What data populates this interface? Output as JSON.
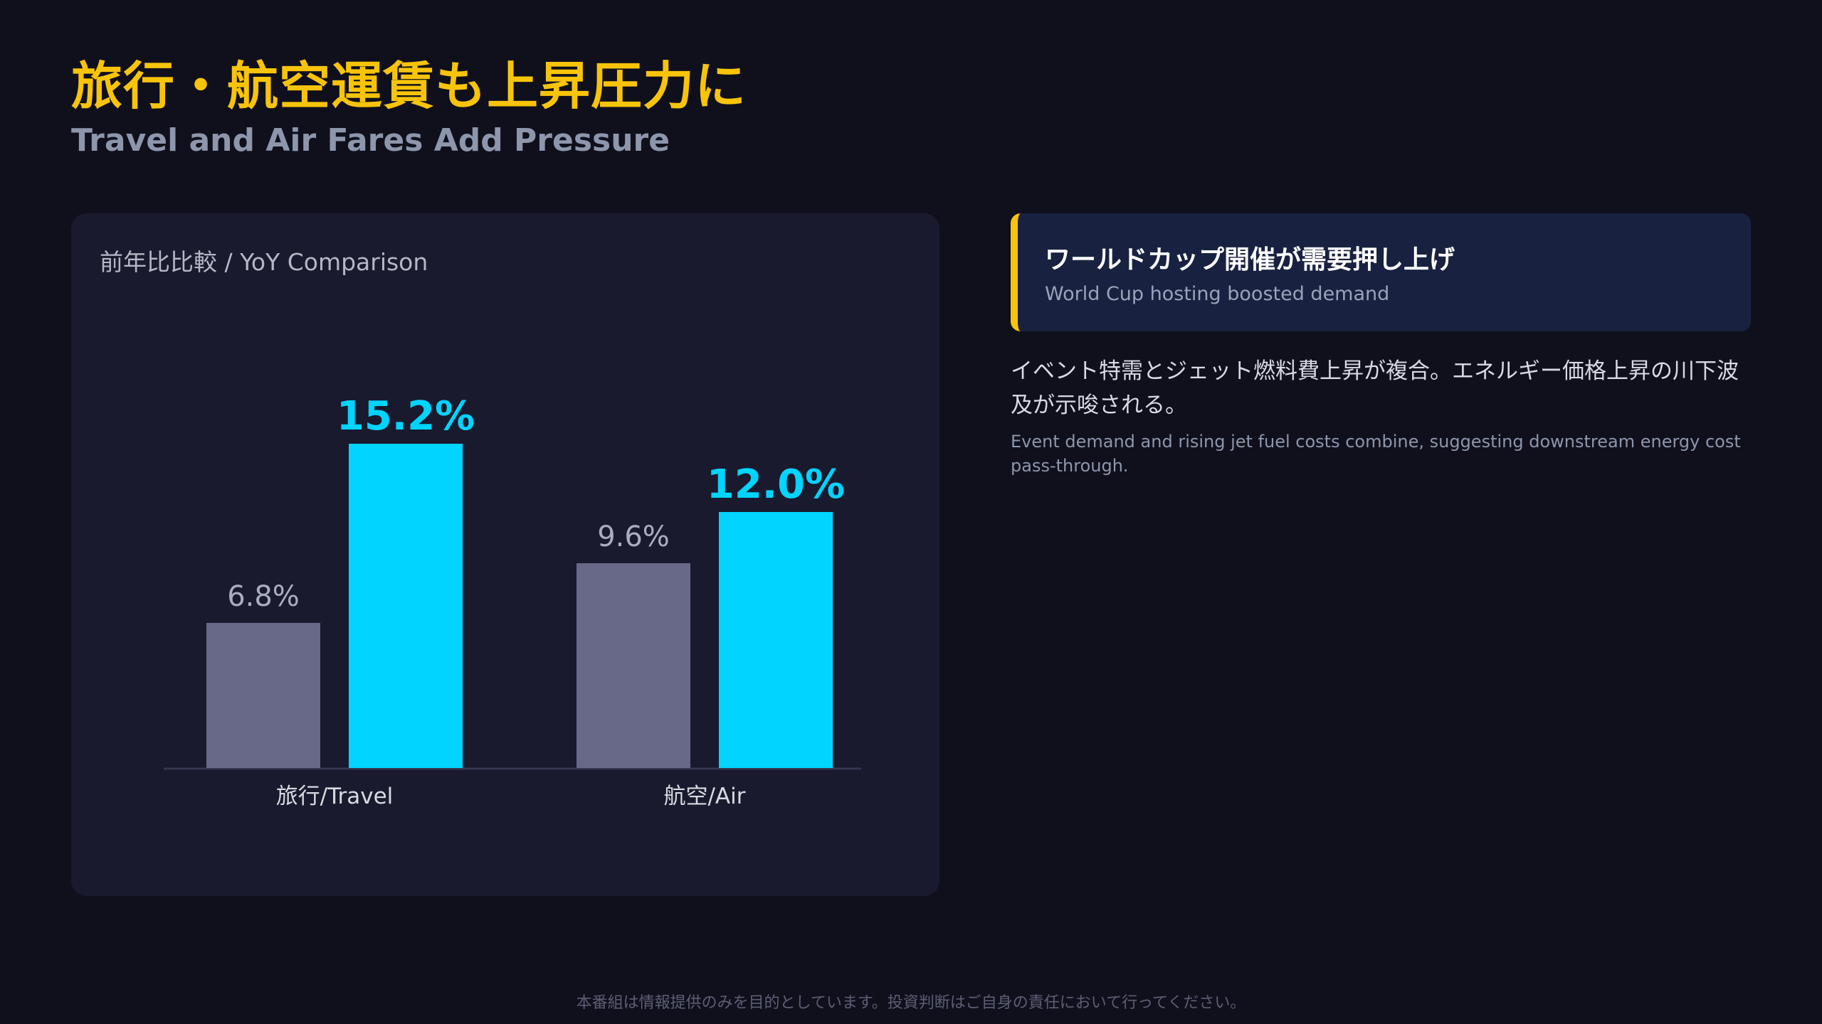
{
  "header": {
    "title": "旅行・航空運賃も上昇圧力に",
    "subtitle": "Travel and Air Fares Add Pressure"
  },
  "chart_card": {
    "title": "前年比比較 / YoY Comparison"
  },
  "chart_data": {
    "type": "bar",
    "categories": [
      "旅行/Travel",
      "航空/Air"
    ],
    "series": [
      {
        "values": [
          6.8,
          9.6
        ],
        "labels": [
          "6.8%",
          "9.6%"
        ],
        "color": "#686888"
      },
      {
        "values": [
          15.2,
          12.0
        ],
        "labels": [
          "15.2%",
          "12.0%"
        ],
        "color": "#00d4ff"
      }
    ],
    "ylim": [
      0,
      18
    ],
    "grid": false,
    "legend": "none"
  },
  "callout": {
    "title": "ワールドカップ開催が需要押し上げ",
    "subtitle": "World Cup hosting boosted demand",
    "accent_color": "#f8c40a"
  },
  "body": {
    "jp": "イベント特需とジェット燃料費上昇が複合。エネルギー価格上昇の川下波及が示唆される。",
    "en": "Event demand and rising jet fuel costs combine, suggesting downstream energy cost pass-through."
  },
  "footer": {
    "disclaimer": "本番組は情報提供のみを目的としています。投資判断はご自身の責任において行ってください。"
  }
}
